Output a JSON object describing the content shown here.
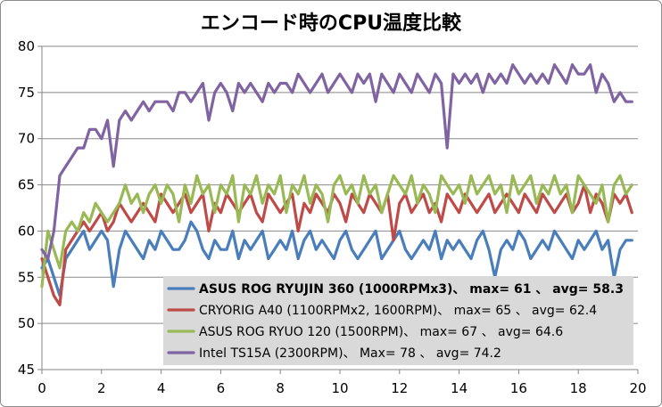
{
  "chart_data": {
    "type": "line",
    "title": "エンコード時のCPU温度比較",
    "xlabel": "",
    "ylabel": "",
    "xlim": [
      0,
      20
    ],
    "ylim": [
      45,
      80
    ],
    "x_ticks": [
      "0",
      "2",
      "4",
      "6",
      "8",
      "10",
      "12",
      "14",
      "16",
      "18",
      "20"
    ],
    "y_ticks": [
      "45",
      "50",
      "55",
      "60",
      "65",
      "70",
      "75",
      "80"
    ],
    "grid": true,
    "legend_position": "bottom-right",
    "colors": {
      "series_0": "#4a7ebb",
      "series_1": "#be4b48",
      "series_2": "#98b954",
      "series_3": "#8064a2",
      "legend_bg": "#d9d9d9",
      "grid": "#898989"
    },
    "series": [
      {
        "name": "ASUS ROG RYUJIN 360 (1000RPMx3)、 max= 61 、 avg= 58.3",
        "legend_bold": true,
        "x": [
          0.0,
          0.2,
          0.4,
          0.6,
          0.8,
          1.0,
          1.2,
          1.4,
          1.6,
          1.8,
          2.0,
          2.2,
          2.4,
          2.6,
          2.8,
          3.0,
          3.2,
          3.4,
          3.6,
          3.8,
          4.0,
          4.2,
          4.4,
          4.6,
          4.8,
          5.0,
          5.2,
          5.4,
          5.6,
          5.8,
          6.0,
          6.2,
          6.4,
          6.6,
          6.8,
          7.0,
          7.2,
          7.4,
          7.6,
          7.8,
          8.0,
          8.2,
          8.4,
          8.6,
          8.8,
          9.0,
          9.2,
          9.4,
          9.6,
          9.8,
          10.0,
          10.2,
          10.4,
          10.6,
          10.8,
          11.0,
          11.2,
          11.4,
          11.6,
          11.8,
          12.0,
          12.2,
          12.4,
          12.6,
          12.8,
          13.0,
          13.2,
          13.4,
          13.6,
          13.8,
          14.0,
          14.2,
          14.4,
          14.6,
          14.8,
          15.0,
          15.2,
          15.4,
          15.6,
          15.8,
          16.0,
          16.2,
          16.4,
          16.6,
          16.8,
          17.0,
          17.2,
          17.4,
          17.6,
          17.8,
          18.0,
          18.2,
          18.4,
          18.6,
          18.8,
          19.0,
          19.2,
          19.4,
          19.6,
          19.8
        ],
        "values": [
          56,
          57,
          55,
          53,
          57,
          58,
          59,
          60,
          58,
          59,
          60,
          59,
          54,
          58,
          60,
          59,
          58,
          57,
          59,
          58,
          60,
          59,
          58,
          58,
          59,
          61,
          60,
          58,
          57,
          59,
          58,
          58,
          60,
          57,
          59,
          58,
          59,
          60,
          57,
          58,
          59,
          58,
          60,
          57,
          59,
          60,
          58,
          59,
          58,
          57,
          59,
          60,
          58,
          57,
          58,
          59,
          60,
          57,
          58,
          59,
          60,
          58,
          57,
          58,
          59,
          58,
          60,
          57,
          59,
          58,
          59,
          58,
          57,
          59,
          60,
          58,
          55,
          58,
          59,
          58,
          60,
          59,
          57,
          58,
          59,
          58,
          60,
          59,
          58,
          57,
          59,
          58,
          59,
          60,
          58,
          59,
          55,
          58,
          59,
          59
        ]
      },
      {
        "name": "CRYORIG A40 (1100RPMx2, 1600RPM)、 max= 65 、 avg= 62.4",
        "legend_bold": false,
        "x": [
          0.0,
          0.2,
          0.4,
          0.6,
          0.8,
          1.0,
          1.2,
          1.4,
          1.6,
          1.8,
          2.0,
          2.2,
          2.4,
          2.6,
          2.8,
          3.0,
          3.2,
          3.4,
          3.6,
          3.8,
          4.0,
          4.2,
          4.4,
          4.6,
          4.8,
          5.0,
          5.2,
          5.4,
          5.6,
          5.8,
          6.0,
          6.2,
          6.4,
          6.6,
          6.8,
          7.0,
          7.2,
          7.4,
          7.6,
          7.8,
          8.0,
          8.2,
          8.4,
          8.6,
          8.8,
          9.0,
          9.2,
          9.4,
          9.6,
          9.8,
          10.0,
          10.2,
          10.4,
          10.6,
          10.8,
          11.0,
          11.2,
          11.4,
          11.6,
          11.8,
          12.0,
          12.2,
          12.4,
          12.6,
          12.8,
          13.0,
          13.2,
          13.4,
          13.6,
          13.8,
          14.0,
          14.2,
          14.4,
          14.6,
          14.8,
          15.0,
          15.2,
          15.4,
          15.6,
          15.8,
          16.0,
          16.2,
          16.4,
          16.6,
          16.8,
          17.0,
          17.2,
          17.4,
          17.6,
          17.8,
          18.0,
          18.2,
          18.4,
          18.6,
          18.8,
          19.0,
          19.2,
          19.4,
          19.6,
          19.8
        ],
        "values": [
          57,
          55,
          53,
          52,
          58,
          59,
          60,
          61,
          60,
          61,
          62,
          60,
          61,
          63,
          62,
          61,
          62,
          63,
          62,
          61,
          64,
          63,
          62,
          63,
          64,
          62,
          63,
          64,
          60,
          63,
          62,
          64,
          63,
          62,
          63,
          64,
          62,
          61,
          64,
          63,
          62,
          63,
          64,
          60,
          63,
          62,
          64,
          63,
          62,
          64,
          63,
          61,
          64,
          63,
          62,
          64,
          63,
          62,
          64,
          59,
          63,
          64,
          62,
          63,
          64,
          62,
          63,
          61,
          64,
          63,
          62,
          64,
          63,
          62,
          63,
          64,
          62,
          63,
          64,
          63,
          62,
          64,
          63,
          62,
          64,
          63,
          62,
          63,
          64,
          62,
          63,
          65,
          62,
          64,
          63,
          61,
          64,
          63,
          64,
          62
        ]
      },
      {
        "name": "ASUS ROG RYUO 120 (1500RPM)、 max= 67 、 avg= 64.6",
        "legend_bold": false,
        "x": [
          0.0,
          0.2,
          0.4,
          0.6,
          0.8,
          1.0,
          1.2,
          1.4,
          1.6,
          1.8,
          2.0,
          2.2,
          2.4,
          2.6,
          2.8,
          3.0,
          3.2,
          3.4,
          3.6,
          3.8,
          4.0,
          4.2,
          4.4,
          4.6,
          4.8,
          5.0,
          5.2,
          5.4,
          5.6,
          5.8,
          6.0,
          6.2,
          6.4,
          6.6,
          6.8,
          7.0,
          7.2,
          7.4,
          7.6,
          7.8,
          8.0,
          8.2,
          8.4,
          8.6,
          8.8,
          9.0,
          9.2,
          9.4,
          9.6,
          9.8,
          10.0,
          10.2,
          10.4,
          10.6,
          10.8,
          11.0,
          11.2,
          11.4,
          11.6,
          11.8,
          12.0,
          12.2,
          12.4,
          12.6,
          12.8,
          13.0,
          13.2,
          13.4,
          13.6,
          13.8,
          14.0,
          14.2,
          14.4,
          14.6,
          14.8,
          15.0,
          15.2,
          15.4,
          15.6,
          15.8,
          16.0,
          16.2,
          16.4,
          16.6,
          16.8,
          17.0,
          17.2,
          17.4,
          17.6,
          17.8,
          18.0,
          18.2,
          18.4,
          18.6,
          18.8,
          19.0,
          19.2,
          19.4,
          19.6,
          19.8
        ],
        "values": [
          54,
          60,
          58,
          56,
          60,
          61,
          60,
          62,
          61,
          63,
          62,
          61,
          62,
          63,
          65,
          63,
          64,
          62,
          64,
          65,
          63,
          65,
          64,
          61,
          65,
          63,
          66,
          64,
          65,
          62,
          65,
          64,
          66,
          61,
          65,
          64,
          66,
          63,
          65,
          64,
          66,
          62,
          65,
          64,
          66,
          63,
          65,
          64,
          61,
          65,
          66,
          64,
          65,
          63,
          66,
          64,
          65,
          62,
          64,
          66,
          65,
          64,
          66,
          63,
          65,
          64,
          62,
          66,
          65,
          64,
          65,
          63,
          66,
          64,
          65,
          66,
          64,
          65,
          62,
          66,
          64,
          65,
          66,
          63,
          65,
          64,
          66,
          64,
          65,
          62,
          66,
          65,
          64,
          63,
          65,
          61,
          65,
          66,
          64,
          65
        ]
      },
      {
        "name": "Intel TS15A (2300RPM)、 Max= 78 、 avg= 74.2",
        "legend_bold": false,
        "x": [
          0.0,
          0.2,
          0.4,
          0.6,
          0.8,
          1.0,
          1.2,
          1.4,
          1.6,
          1.8,
          2.0,
          2.2,
          2.4,
          2.6,
          2.8,
          3.0,
          3.2,
          3.4,
          3.6,
          3.8,
          4.0,
          4.2,
          4.4,
          4.6,
          4.8,
          5.0,
          5.2,
          5.4,
          5.6,
          5.8,
          6.0,
          6.2,
          6.4,
          6.6,
          6.8,
          7.0,
          7.2,
          7.4,
          7.6,
          7.8,
          8.0,
          8.2,
          8.4,
          8.6,
          8.8,
          9.0,
          9.2,
          9.4,
          9.6,
          9.8,
          10.0,
          10.2,
          10.4,
          10.6,
          10.8,
          11.0,
          11.2,
          11.4,
          11.6,
          11.8,
          12.0,
          12.2,
          12.4,
          12.6,
          12.8,
          13.0,
          13.2,
          13.4,
          13.6,
          13.8,
          14.0,
          14.2,
          14.4,
          14.6,
          14.8,
          15.0,
          15.2,
          15.4,
          15.6,
          15.8,
          16.0,
          16.2,
          16.4,
          16.6,
          16.8,
          17.0,
          17.2,
          17.4,
          17.6,
          17.8,
          18.0,
          18.2,
          18.4,
          18.6,
          18.8,
          19.0,
          19.2,
          19.4,
          19.6,
          19.8
        ],
        "values": [
          58,
          57,
          60,
          66,
          67,
          68,
          69,
          69,
          71,
          71,
          70,
          72,
          67,
          72,
          73,
          72,
          73,
          74,
          73,
          74,
          74,
          74,
          73,
          75,
          75,
          74,
          75,
          76,
          72,
          75,
          76,
          75,
          73,
          76,
          75,
          76,
          75,
          74,
          76,
          75,
          76,
          76,
          75,
          77,
          76,
          75,
          76,
          77,
          75,
          76,
          77,
          76,
          75,
          77,
          76,
          77,
          74,
          77,
          76,
          75,
          77,
          76,
          75,
          77,
          76,
          75,
          77,
          76,
          69,
          77,
          76,
          77,
          76,
          77,
          75,
          77,
          76,
          77,
          76,
          78,
          77,
          76,
          77,
          76,
          77,
          76,
          78,
          77,
          76,
          78,
          77,
          77,
          78,
          75,
          77,
          76,
          74,
          75,
          74,
          74
        ]
      }
    ]
  }
}
